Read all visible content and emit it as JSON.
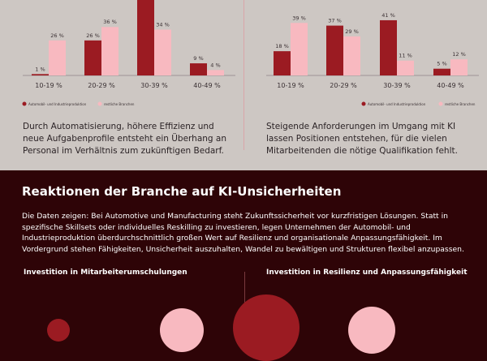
{
  "colors": {
    "primary": "#9b1b22",
    "secondary": "#f8b9c0",
    "background_top": "#cdc7c3",
    "background_bottom": "#2e0407"
  },
  "chart_data": [
    {
      "type": "bar",
      "categories": [
        "10-19 %",
        "20-29 %",
        "30-39 %",
        "40-49 %"
      ],
      "series": [
        {
          "name": "Automobil- und Industrieproduktion",
          "values": [
            1,
            26,
            58,
            9
          ],
          "labels": [
            "1 %",
            "26 %",
            "",
            "9 %"
          ]
        },
        {
          "name": "restliche Branchen",
          "values": [
            26,
            36,
            34,
            4
          ],
          "labels": [
            "26 %",
            "36 %",
            "34 %",
            "4 %"
          ]
        }
      ],
      "legend": "bottom-left"
    },
    {
      "type": "bar",
      "categories": [
        "10-19 %",
        "20-29 %",
        "30-39 %",
        "40-49 %"
      ],
      "series": [
        {
          "name": "Automobil- und Industrieproduktion",
          "values": [
            18,
            37,
            41,
            5
          ],
          "labels": [
            "18 %",
            "37 %",
            "41 %",
            "5 %"
          ]
        },
        {
          "name": "restliche Branchen",
          "values": [
            39,
            29,
            11,
            12
          ],
          "labels": [
            "39 %",
            "29 %",
            "11 %",
            "12 %"
          ]
        }
      ],
      "legend": "bottom-right"
    }
  ],
  "left_text": "Durch Automatisierung, höhere Effizienz und neue Aufgabenprofile entsteht ein Überhang an Personal im Verhältnis zum zukünftigen Bedarf.",
  "right_text": "Steigende Anforderungen im Umgang mit KI lassen Positionen entstehen, für die vielen Mitarbeitenden die nötige Qualifikation fehlt.",
  "section": {
    "title": "Reaktionen der Branche auf KI-Unsicherheiten",
    "paragraph": "Die Daten zeigen: Bei Automotive und Manufacturing steht Zukunftssicherheit vor kurzfristigen Lösungen. Statt in spezifische Skillsets oder individuelles Reskilling zu investieren, legen Unternehmen der Automobil- und Industrieproduktion überdurchschnittlich großen Wert auf Resilienz und organisationale Anpassungsfähigkeit. Im Vordergrund stehen Fähigkeiten, Unsicherheit auszuhalten, Wandel zu bewältigen und Strukturen flexibel anzupassen.",
    "left_subtitle": "Investition in Mitarbeiterumschulungen",
    "right_subtitle": "Investition in Resilienz und Anpassungsfähigkeit"
  }
}
